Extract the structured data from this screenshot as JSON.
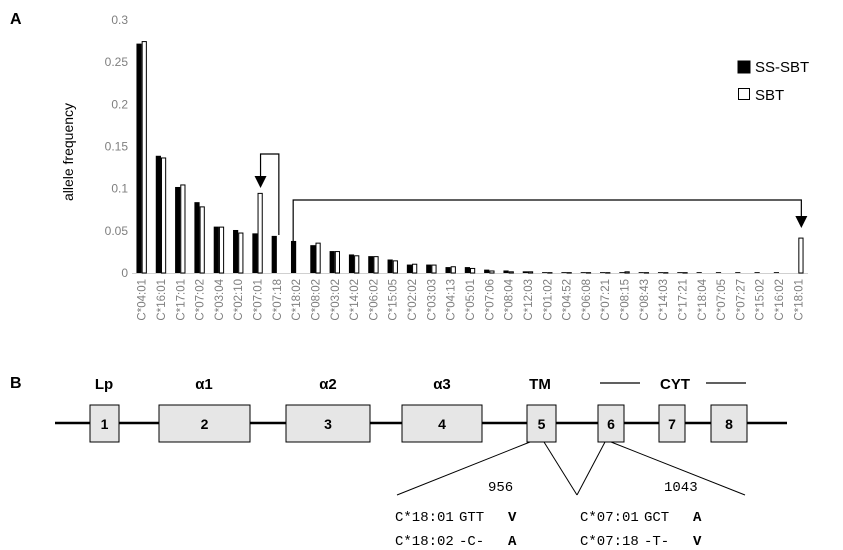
{
  "panel_labels": {
    "a": "A",
    "b": "B"
  },
  "chart_data": {
    "type": "bar",
    "ylabel": "allele frequency",
    "xlabel": "",
    "ylim": [
      0,
      0.3
    ],
    "yticks": [
      "0",
      "0.05",
      "0.1",
      "0.15",
      "0.2",
      "0.25",
      "0.3"
    ],
    "grid": false,
    "legend_position": "top-right",
    "categories": [
      "C*04:01",
      "C*16:01",
      "C*17:01",
      "C*07:02",
      "C*03:04",
      "C*02:10",
      "C*07:01",
      "C*07:18",
      "C*18:02",
      "C*08:02",
      "C*03:02",
      "C*14:02",
      "C*06:02",
      "C*15:05",
      "C*02:02",
      "C*03:03",
      "C*04:13",
      "C*05:01",
      "C*07:06",
      "C*08:04",
      "C*12:03",
      "C*01:02",
      "C*04:52",
      "C*06:08",
      "C*07:21",
      "C*08:15",
      "C*08:43",
      "C*14:03",
      "C*17:21",
      "C*18:04",
      "C*07:05",
      "C*07:27",
      "C*15:02",
      "C*16:02",
      "C*18:01"
    ],
    "series": [
      {
        "name": "SS-SBT",
        "color": "#000000",
        "values": [
          0.272,
          0.139,
          0.102,
          0.084,
          0.055,
          0.051,
          0.047,
          0.044,
          0.038,
          0.033,
          0.026,
          0.022,
          0.02,
          0.016,
          0.01,
          0.01,
          0.007,
          0.007,
          0.004,
          0.003,
          0.002,
          0.001,
          0.001,
          0.001,
          0.001,
          0.001,
          0.001,
          0.001,
          0.001,
          0.001,
          0.001,
          0.001,
          0.001,
          0.001,
          0
        ]
      },
      {
        "name": "SBT",
        "color": "#ffffff",
        "values": [
          0.275,
          0.137,
          0.105,
          0.079,
          0.055,
          0.048,
          0.095,
          0,
          0,
          0.036,
          0.026,
          0.021,
          0.02,
          0.015,
          0.011,
          0.01,
          0.008,
          0.006,
          0.003,
          0.002,
          0.002,
          0.001,
          0.001,
          0.001,
          0.001,
          0.002,
          0.001,
          0.001,
          0.001,
          0,
          0,
          0,
          0,
          0,
          0.042
        ]
      }
    ]
  },
  "gene": {
    "labels": [
      "Lp",
      "α1",
      "α2",
      "α3",
      "TM",
      "CYT"
    ],
    "exons": [
      "1",
      "2",
      "3",
      "4",
      "5",
      "6",
      "7",
      "8"
    ],
    "fill_color": "#e6e6e6"
  },
  "detail_left": {
    "position": "956",
    "lines": [
      {
        "allele": "C*18:01",
        "codon": "GTT",
        "aa": "V"
      },
      {
        "allele": "C*18:02",
        "codon": "-C-",
        "aa": "A"
      }
    ]
  },
  "detail_right": {
    "position": "1043",
    "lines": [
      {
        "allele": "C*07:01",
        "codon": "GCT",
        "aa": "A"
      },
      {
        "allele": "C*07:18",
        "codon": "-T-",
        "aa": "V"
      }
    ]
  }
}
